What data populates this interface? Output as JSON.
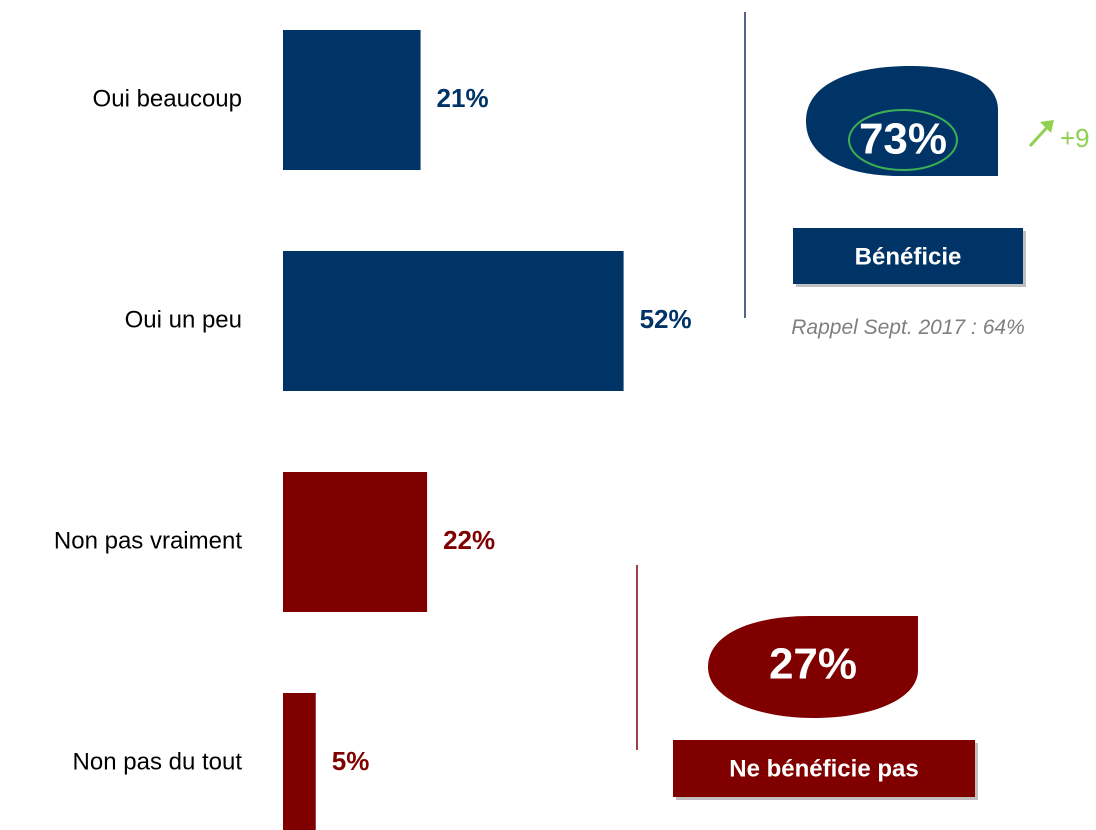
{
  "chart_data": {
    "type": "bar",
    "orientation": "horizontal",
    "categories": [
      "Oui beaucoup",
      "Oui un peu",
      "Non pas vraiment",
      "Non pas du tout"
    ],
    "values": [
      21,
      52,
      22,
      5
    ],
    "value_labels": [
      "21%",
      "52%",
      "22%",
      "5%"
    ],
    "colors": [
      "#003366",
      "#003366",
      "#800000",
      "#800000"
    ],
    "annotations": [
      {
        "value": "73%",
        "name": "Bénéficie",
        "change": "+9",
        "note": "Rappel Sept. 2017 : 64%",
        "color": "#003366"
      },
      {
        "value": "27%",
        "name": "Ne bénéficie pas",
        "color": "#800000"
      }
    ]
  }
}
